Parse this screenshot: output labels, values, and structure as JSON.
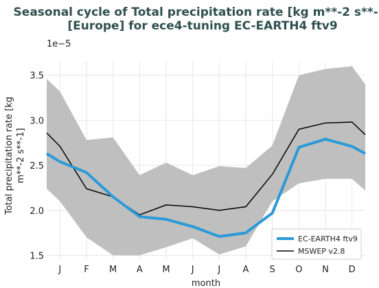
{
  "chart_data": {
    "type": "line",
    "title_line1": "Seasonal cycle of Total precipitation rate [kg m**-2 s**-1]",
    "title_line2": "[Europe] for ece4-tuning EC-EARTH4 ftv9",
    "xlabel": "month",
    "ylabel_line1": "Total precipitation rate [kg",
    "ylabel_line2": "m**-2 s**-1]",
    "y_offset_label": "1e−5",
    "categories": [
      "J",
      "F",
      "M",
      "A",
      "M",
      "J",
      "J",
      "A",
      "S",
      "O",
      "N",
      "D"
    ],
    "x_extend": [
      -0.5,
      11.5
    ],
    "ylim": [
      1.45,
      3.65
    ],
    "yticks": [
      1.5,
      2.0,
      2.5,
      3.0,
      3.5
    ],
    "ytick_labels": [
      "1.5",
      "2.0",
      "2.5",
      "3.0",
      "3.5"
    ],
    "grid": true,
    "legend_position": "lower-right",
    "band": {
      "upper": [
        3.32,
        2.78,
        2.81,
        2.39,
        2.53,
        2.39,
        2.49,
        2.47,
        2.72,
        3.5,
        3.57,
        3.6
      ],
      "lower": [
        2.1,
        1.7,
        1.5,
        1.5,
        1.59,
        1.69,
        1.51,
        1.6,
        2.1,
        2.3,
        2.35,
        2.35
      ],
      "upper_ext_left": 3.46,
      "upper_ext_right": 3.4,
      "lower_ext_left": 2.24,
      "lower_ext_right": 2.22,
      "color": "#bfbfbf"
    },
    "series": [
      {
        "name": "EC-EARTH4 ftv9",
        "color": "#2a9ad8",
        "values": [
          2.54,
          2.42,
          2.15,
          1.93,
          1.9,
          1.82,
          1.71,
          1.75,
          1.97,
          2.7,
          2.79,
          2.71
        ],
        "ext_left": 2.63,
        "ext_right": 2.63
      },
      {
        "name": "MSWEP v2.8",
        "color": "#000000",
        "values": [
          2.71,
          2.24,
          2.15,
          1.95,
          2.06,
          2.04,
          2.0,
          2.04,
          2.4,
          2.9,
          2.97,
          2.98
        ],
        "ext_left": 2.86,
        "ext_right": 2.84
      }
    ]
  }
}
